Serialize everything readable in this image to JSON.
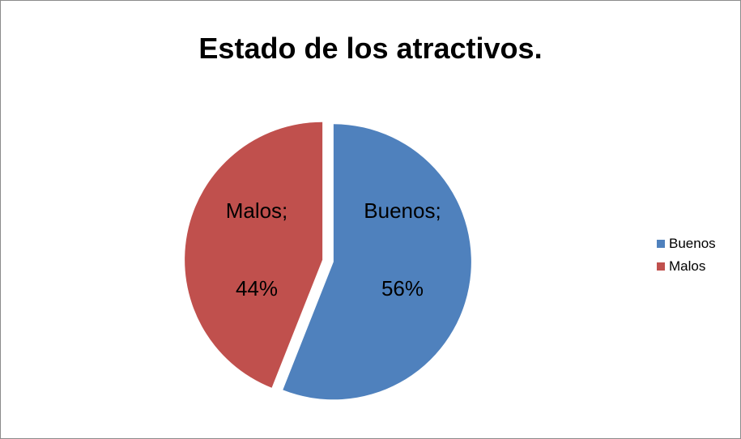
{
  "chart_data": {
    "type": "pie",
    "title": "Estado de los atractivos.",
    "slices": [
      {
        "name": "Buenos",
        "value": 56,
        "label_name": "Buenos;",
        "label_value": "56%",
        "color": "#4f81bd"
      },
      {
        "name": "Malos",
        "value": 44,
        "label_name": "Malos;",
        "label_value": "44%",
        "color": "#c0504d"
      }
    ],
    "legend": {
      "position": "right",
      "entries": [
        "Buenos",
        "Malos"
      ]
    }
  }
}
